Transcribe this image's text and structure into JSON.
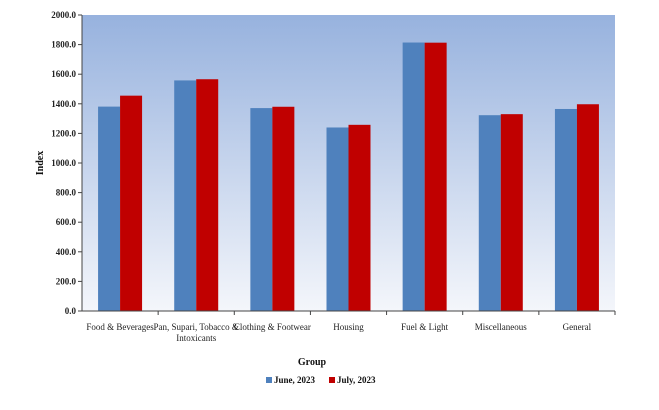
{
  "chart_data": {
    "type": "bar",
    "xlabel": "Group",
    "ylabel": "Index",
    "ylim": [
      0,
      2000
    ],
    "ytick_step": 200,
    "ytick_labels": [
      "0.0",
      "200.0",
      "400.0",
      "600.0",
      "800.0",
      "1000.0",
      "1200.0",
      "1400.0",
      "1600.0",
      "1800.0",
      "2000.0"
    ],
    "grid": false,
    "legend_position": "bottom",
    "categories": [
      [
        "Food & Beverages"
      ],
      [
        "Pan, Supari, Tobacco &",
        "Intoxicants"
      ],
      [
        "Clothing & Footwear"
      ],
      [
        "Housing"
      ],
      [
        "Fuel & Light"
      ],
      [
        "Miscellaneous"
      ],
      [
        "General"
      ]
    ],
    "series": [
      {
        "name": "June, 2023",
        "color": "#4f81bd",
        "values": [
          1381,
          1558,
          1371,
          1240,
          1814,
          1323,
          1365
        ]
      },
      {
        "name": "July, 2023",
        "color": "#c00000",
        "values": [
          1455,
          1566,
          1380,
          1258,
          1813,
          1330,
          1397
        ]
      }
    ],
    "plot_background_top": "#97b2de",
    "plot_background_bottom": "#f4f6fb"
  }
}
